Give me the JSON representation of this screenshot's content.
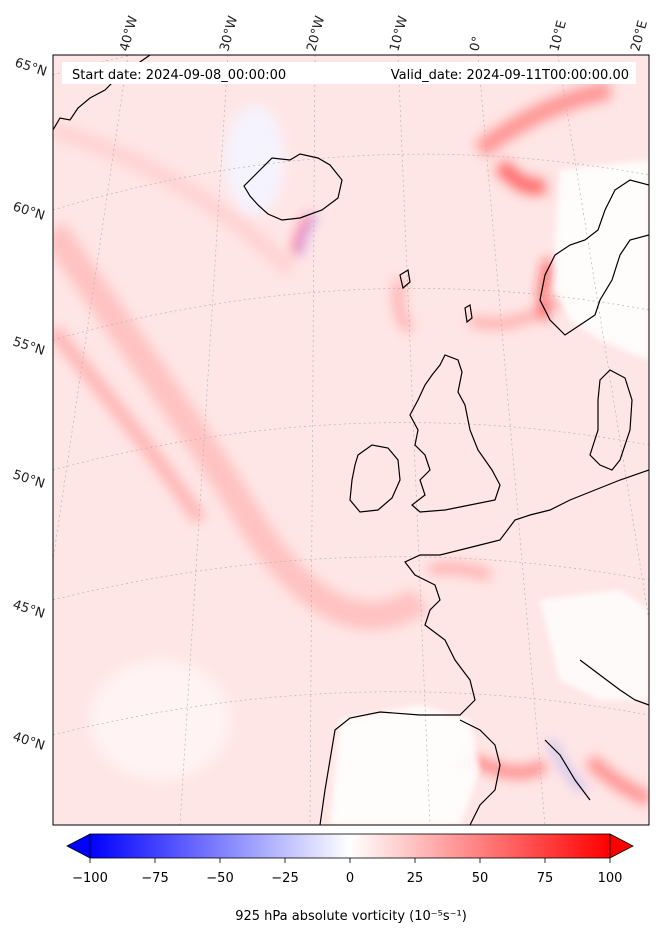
{
  "header": {
    "start_date": "Start date: 2024-09-08_00:00:00",
    "valid_date": "Valid_date: 2024-09-11T00:00:00.00"
  },
  "longitude_labels": [
    "40°W",
    "30°W",
    "20°W",
    "10°W",
    "0°",
    "10°E",
    "20°E"
  ],
  "latitude_labels": [
    "65°N",
    "60°N",
    "55°N",
    "50°N",
    "45°N",
    "40°N"
  ],
  "colorbar": {
    "title": "925 hPa absolute vorticity (10⁻⁵s⁻¹)",
    "ticks": [
      "−100",
      "−75",
      "−50",
      "−25",
      "0",
      "25",
      "50",
      "75",
      "100"
    ],
    "min": -100,
    "max": 100,
    "negative_color": "#0000ff",
    "positive_color": "#ff0000",
    "neutral_color": "#ffffff"
  },
  "map": {
    "background_tint": "#ffe4e4",
    "land_outline_color": "#000000",
    "graticule_color": "#bbbbbb"
  }
}
